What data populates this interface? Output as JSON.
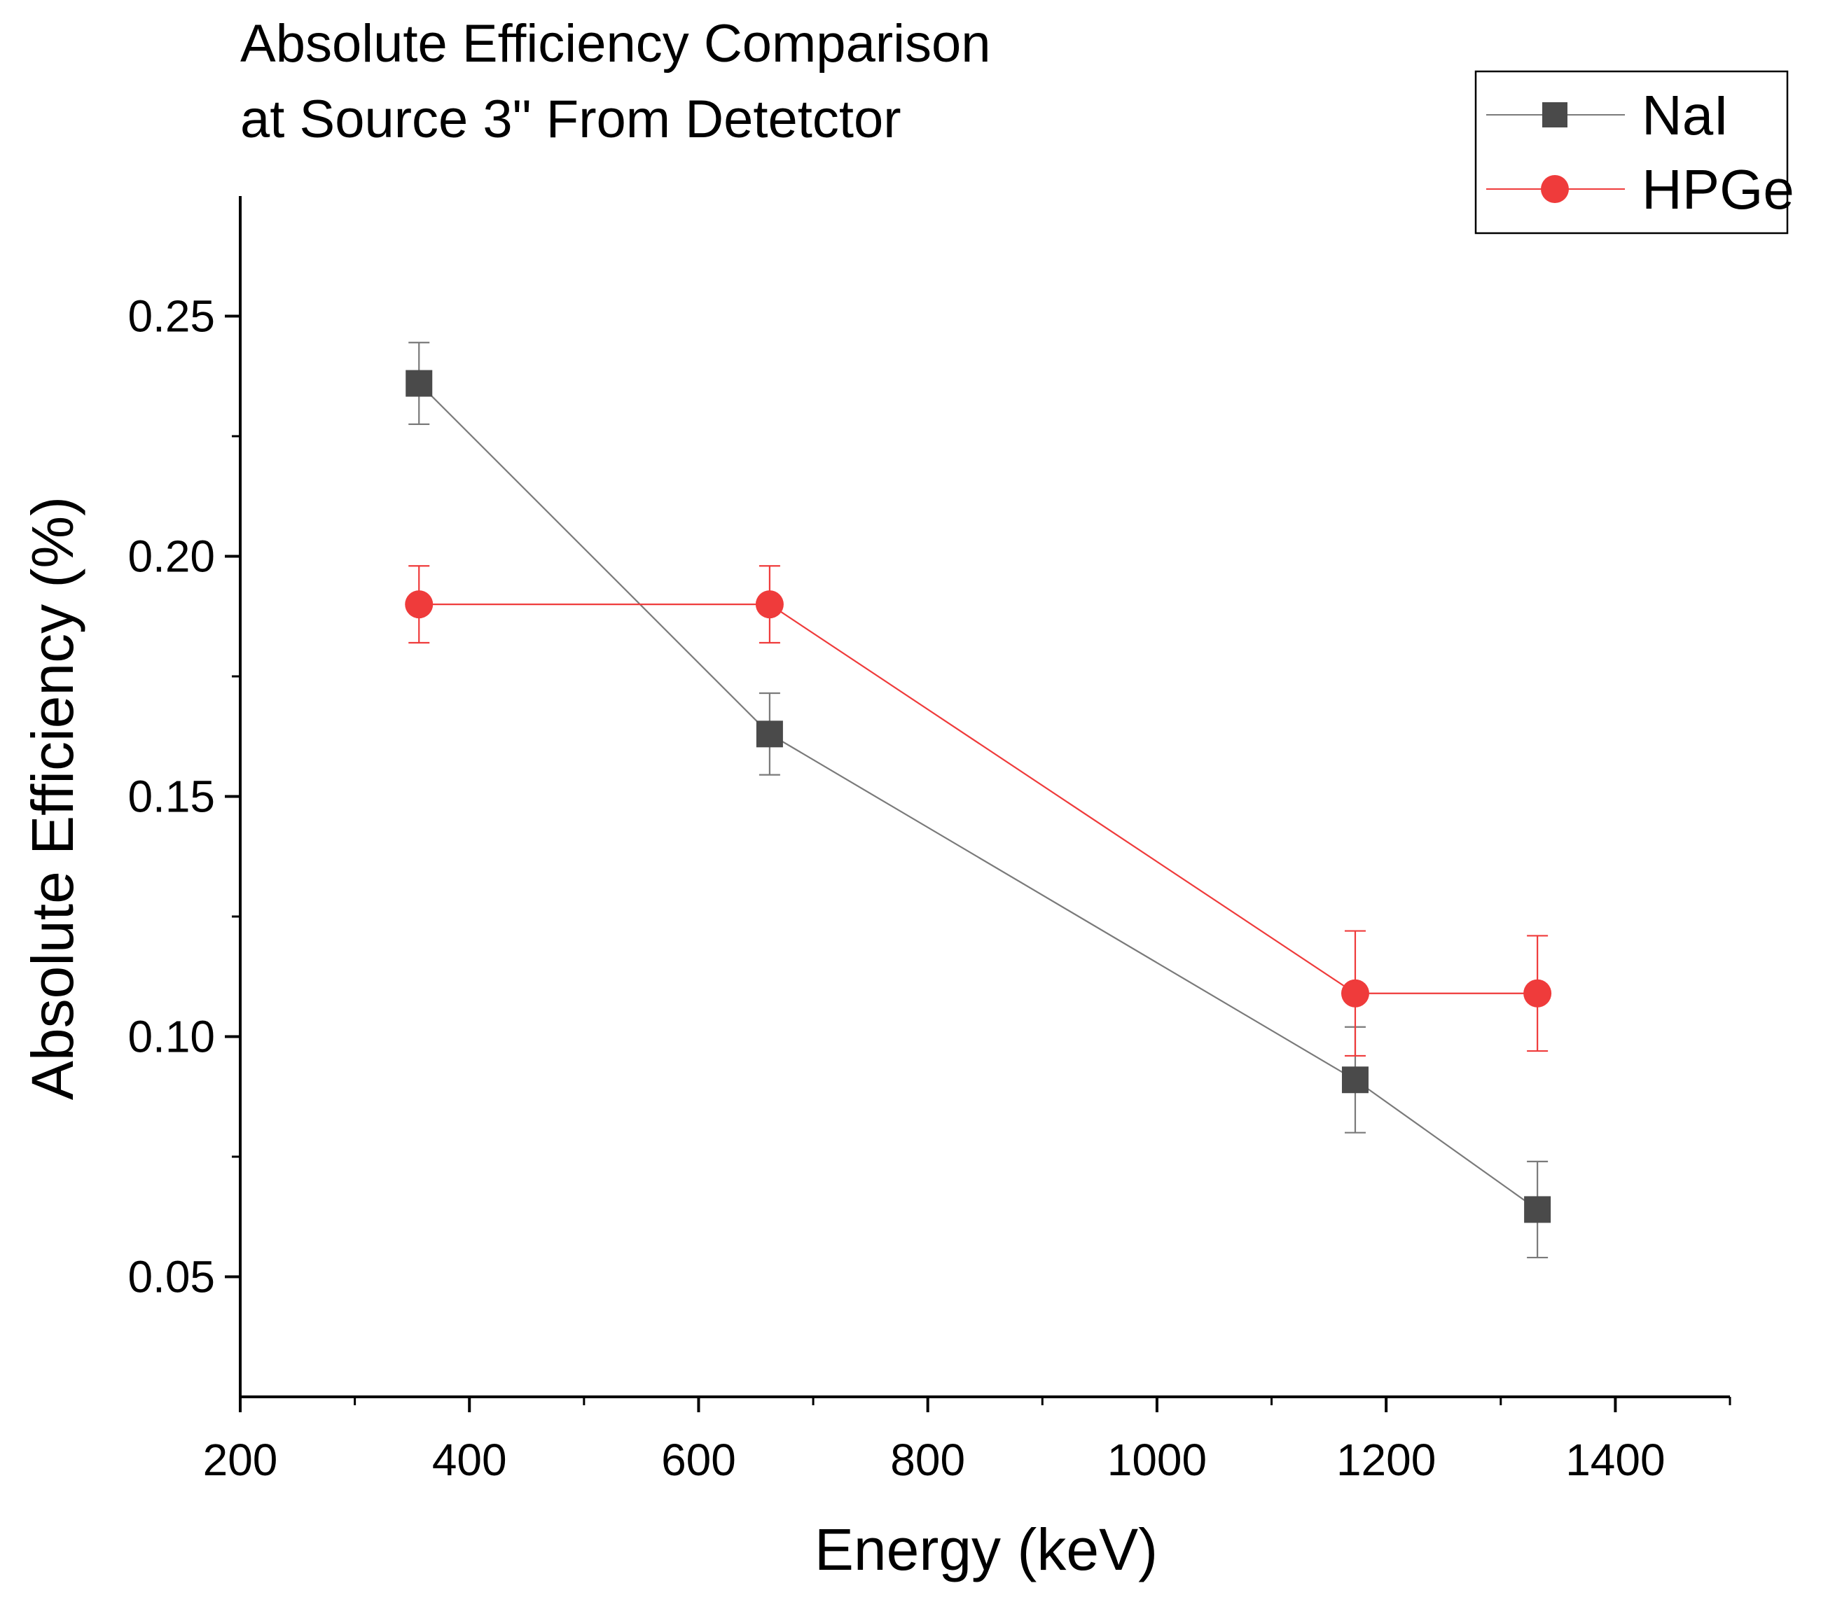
{
  "chart_data": {
    "type": "line",
    "title_lines": [
      "Absolute Efficiency Comparison",
      "at Source 3\" From Detetctor"
    ],
    "xlabel": "Energy (keV)",
    "ylabel": "Absolute Efficiency (%)",
    "xlim": [
      200,
      1500
    ],
    "ylim": [
      0.025,
      0.275
    ],
    "x_ticks": [
      200,
      400,
      600,
      800,
      1000,
      1200,
      1400
    ],
    "x_tick_labels": [
      "200",
      "400",
      "600",
      "800",
      "1000",
      "1200",
      "1400"
    ],
    "x_minor_ticks": [
      300,
      500,
      700,
      900,
      1100,
      1300,
      1500
    ],
    "y_ticks": [
      0.05,
      0.1,
      0.15,
      0.2,
      0.25
    ],
    "y_tick_labels": [
      "0.05",
      "0.10",
      "0.15",
      "0.20",
      "0.25"
    ],
    "y_minor_ticks": [
      0.075,
      0.125,
      0.175,
      0.225
    ],
    "grid": false,
    "legend_position": "top-right",
    "series": [
      {
        "name": "NaI",
        "marker": "square",
        "color": "#4a4a4a",
        "line_color": "#7a7a7a",
        "x": [
          356,
          662,
          1173,
          1332
        ],
        "y": [
          0.236,
          0.163,
          0.091,
          0.064
        ],
        "err": [
          0.0085,
          0.0085,
          0.011,
          0.01
        ]
      },
      {
        "name": "HPGe",
        "marker": "circle",
        "color": "#ef3b3b",
        "line_color": "#ef3b3b",
        "x": [
          356,
          662,
          1173,
          1332
        ],
        "y": [
          0.19,
          0.19,
          0.109,
          0.109
        ],
        "err": [
          0.008,
          0.008,
          0.013,
          0.012
        ]
      }
    ]
  }
}
